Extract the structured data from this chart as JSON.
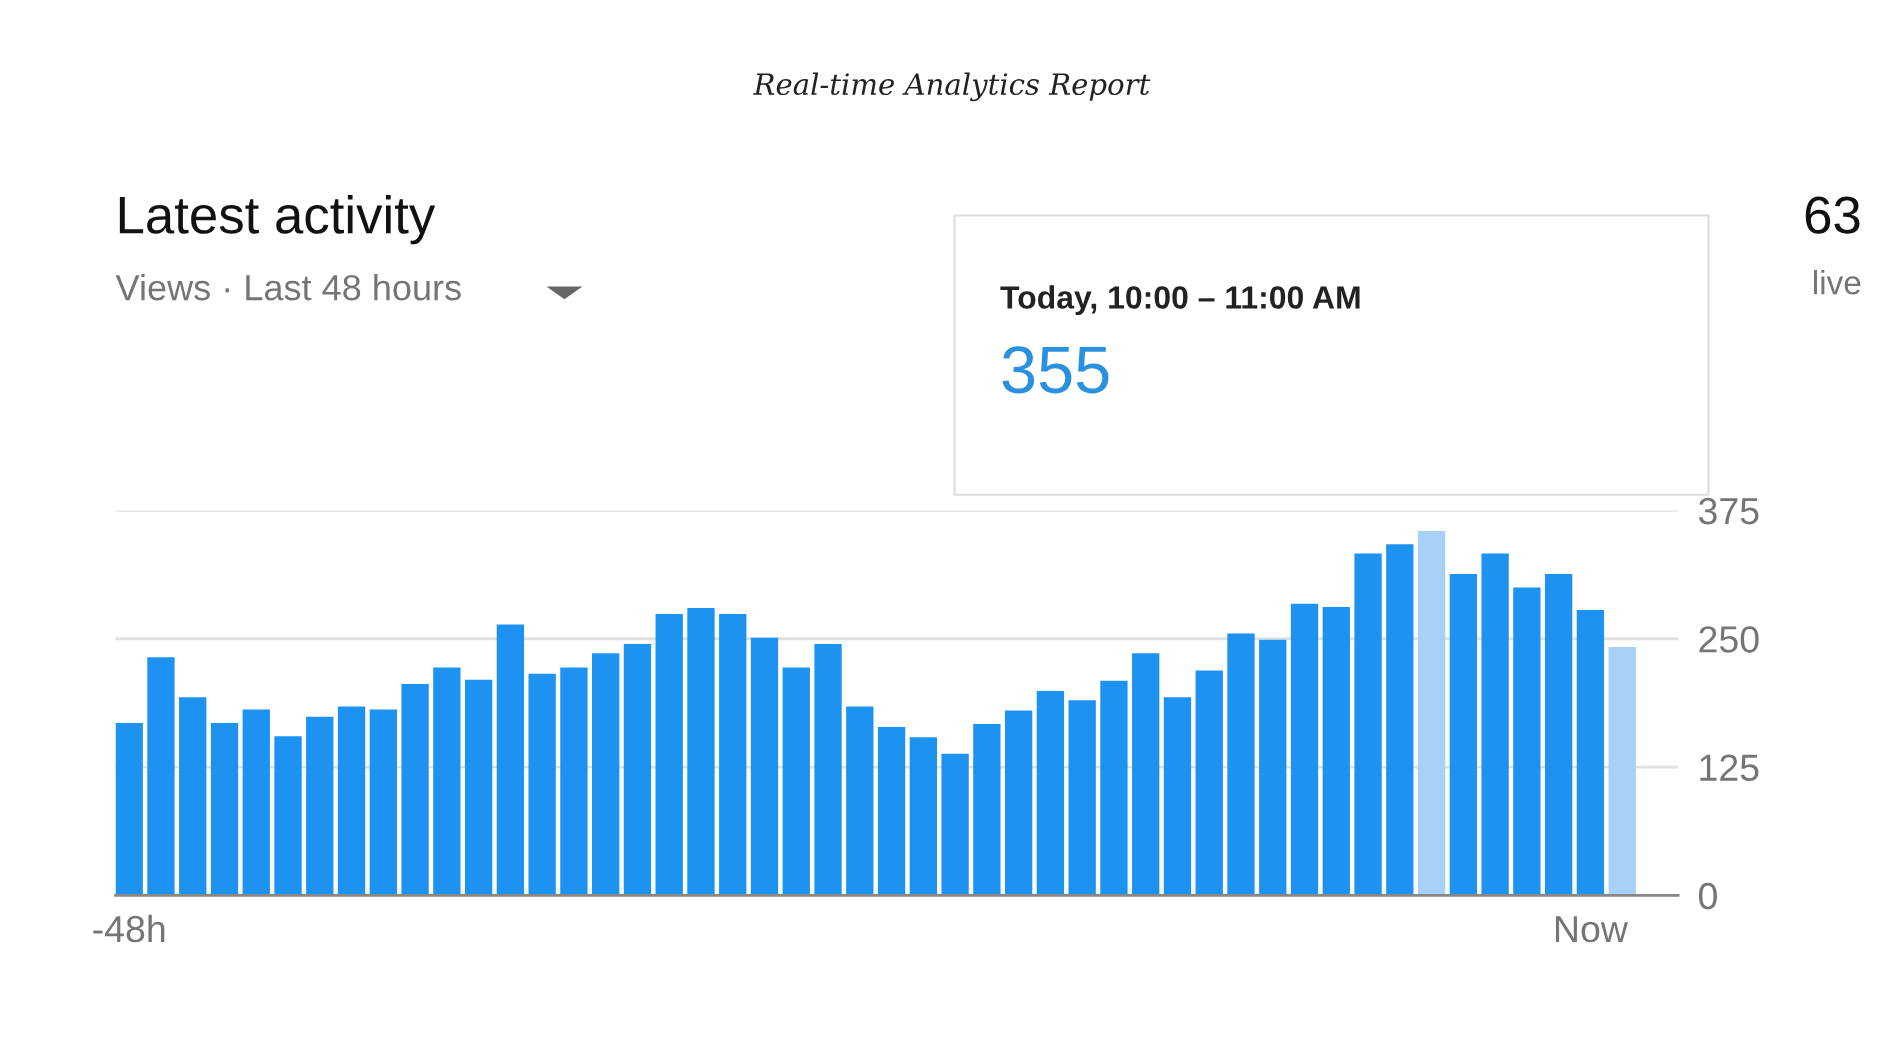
{
  "chart_data": {
    "type": "bar",
    "title": "Real-time Analytics Report",
    "annotations": [
      "Latest activity",
      "Views · Last 48 hours",
      "Today, 10:00 – 11:00 AM",
      "355",
      "63",
      "live"
    ],
    "categories": [
      "-48h",
      null,
      null,
      null,
      null,
      null,
      null,
      null,
      null,
      null,
      null,
      null,
      null,
      null,
      null,
      null,
      null,
      null,
      null,
      null,
      null,
      null,
      null,
      null,
      null,
      null,
      null,
      null,
      null,
      null,
      null,
      null,
      null,
      null,
      null,
      null,
      null,
      null,
      null,
      null,
      null,
      null,
      null,
      null,
      null,
      null,
      "Now",
      null
    ],
    "values": [
      168,
      232,
      193,
      168,
      181,
      155,
      174,
      184,
      181,
      206,
      222,
      210,
      264,
      216,
      222,
      236,
      245,
      274,
      280,
      274,
      251,
      222,
      245,
      184,
      164,
      154,
      138,
      167,
      180,
      199,
      190,
      209,
      236,
      193,
      219,
      255,
      249,
      284,
      281,
      333,
      342,
      355,
      313,
      333,
      300,
      313,
      278,
      242
    ],
    "colors": [
      "#1e92f0",
      "#1e92f0",
      "#1e92f0",
      "#1e92f0",
      "#1e92f0",
      "#1e92f0",
      "#1e92f0",
      "#1e92f0",
      "#1e92f0",
      "#1e92f0",
      "#1e92f0",
      "#1e92f0",
      "#1e92f0",
      "#1e92f0",
      "#1e92f0",
      "#1e92f0",
      "#1e92f0",
      "#1e92f0",
      "#1e92f0",
      "#1e92f0",
      "#1e92f0",
      "#1e92f0",
      "#1e92f0",
      "#1e92f0",
      "#1e92f0",
      "#1e92f0",
      "#1e92f0",
      "#1e92f0",
      "#1e92f0",
      "#1e92f0",
      "#1e92f0",
      "#1e92f0",
      "#1e92f0",
      "#1e92f0",
      "#1e92f0",
      "#1e92f0",
      "#1e92f0",
      "#1e92f0",
      "#1e92f0",
      "#1e92f0",
      "#1e92f0",
      "#a8d1f7",
      "#1e92f0",
      "#1e92f0",
      "#1e92f0",
      "#1e92f0",
      "#1e92f0",
      "#a8d1f7"
    ],
    "ylim": [
      0,
      375
    ],
    "yticks": [
      0,
      125,
      250,
      375
    ],
    "grid": "y",
    "legend": false
  }
}
